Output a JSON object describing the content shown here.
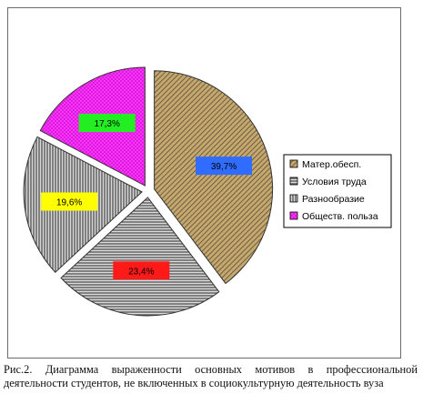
{
  "chart_data": {
    "type": "pie",
    "exploded": true,
    "title": "",
    "slices": [
      {
        "label": "Матер.обесп.",
        "value": 39.7,
        "value_label": "39,7%",
        "color": "#a89163",
        "pattern": "diagonal-stripes",
        "label_bg": "#2f6cff"
      },
      {
        "label": "Условия труда",
        "value": 23.4,
        "value_label": "23,4%",
        "color": "#8a8a8a",
        "pattern": "horizontal-stripes",
        "label_bg": "#ff1a1a"
      },
      {
        "label": "Разнообразие",
        "value": 19.6,
        "value_label": "19,6%",
        "color": "#8f8f8f",
        "pattern": "vertical-stripes",
        "label_bg": "#ffff00"
      },
      {
        "label": "Обществ. польза",
        "value": 17.3,
        "value_label": "17,3%",
        "color": "#ff33ff",
        "pattern": "dots",
        "label_bg": "#22ee22"
      }
    ],
    "legend_placement": "right"
  },
  "caption": {
    "line1": "Рис.2. Диаграмма выраженности основных мотивов в профессиональной",
    "line2": "деятельности студентов, не включенных в социокультурную деятельность вуза"
  }
}
